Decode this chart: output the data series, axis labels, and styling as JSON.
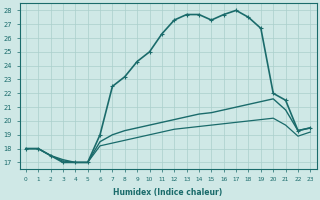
{
  "xlabel": "Humidex (Indice chaleur)",
  "ylabel": "",
  "background_color": "#cfe8e6",
  "line_color": "#1a6b6b",
  "xlim": [
    -0.5,
    23.5
  ],
  "ylim": [
    16.5,
    28.5
  ],
  "xticks": [
    0,
    1,
    2,
    3,
    4,
    5,
    6,
    7,
    8,
    9,
    10,
    11,
    12,
    13,
    14,
    15,
    16,
    17,
    18,
    19,
    20,
    21,
    22,
    23
  ],
  "yticks": [
    17,
    18,
    19,
    20,
    21,
    22,
    23,
    24,
    25,
    26,
    27,
    28
  ],
  "grid_color": "#aacfcc",
  "series": [
    {
      "x": [
        0,
        1,
        2,
        3,
        4,
        5,
        6,
        7,
        8,
        9,
        10,
        11,
        12,
        13,
        14,
        15,
        16,
        17,
        18,
        19,
        20,
        21,
        22,
        23
      ],
      "y": [
        18.0,
        18.0,
        17.5,
        17.0,
        17.0,
        17.0,
        19.0,
        22.5,
        23.2,
        24.3,
        25.0,
        26.3,
        27.3,
        27.7,
        27.7,
        27.3,
        27.7,
        28.0,
        27.5,
        26.7,
        22.0,
        21.5,
        19.3,
        19.5
      ],
      "marker": "+",
      "linewidth": 1.2
    },
    {
      "x": [
        0,
        1,
        2,
        3,
        4,
        5,
        6,
        7,
        8,
        9,
        10,
        11,
        12,
        13,
        14,
        15,
        16,
        17,
        18,
        19,
        20,
        21,
        22,
        23
      ],
      "y": [
        18.0,
        18.0,
        17.5,
        17.2,
        17.0,
        17.0,
        18.5,
        19.0,
        19.3,
        19.5,
        19.7,
        19.9,
        20.1,
        20.3,
        20.5,
        20.6,
        20.8,
        21.0,
        21.2,
        21.4,
        21.6,
        20.8,
        19.3,
        19.5
      ],
      "marker": "None",
      "linewidth": 1.0
    },
    {
      "x": [
        0,
        1,
        2,
        3,
        4,
        5,
        6,
        7,
        8,
        9,
        10,
        11,
        12,
        13,
        14,
        15,
        16,
        17,
        18,
        19,
        20,
        21,
        22,
        23
      ],
      "y": [
        18.0,
        18.0,
        17.5,
        17.1,
        17.0,
        17.0,
        18.2,
        18.4,
        18.6,
        18.8,
        19.0,
        19.2,
        19.4,
        19.5,
        19.6,
        19.7,
        19.8,
        19.9,
        20.0,
        20.1,
        20.2,
        19.7,
        18.9,
        19.2
      ],
      "marker": "None",
      "linewidth": 0.9
    }
  ]
}
